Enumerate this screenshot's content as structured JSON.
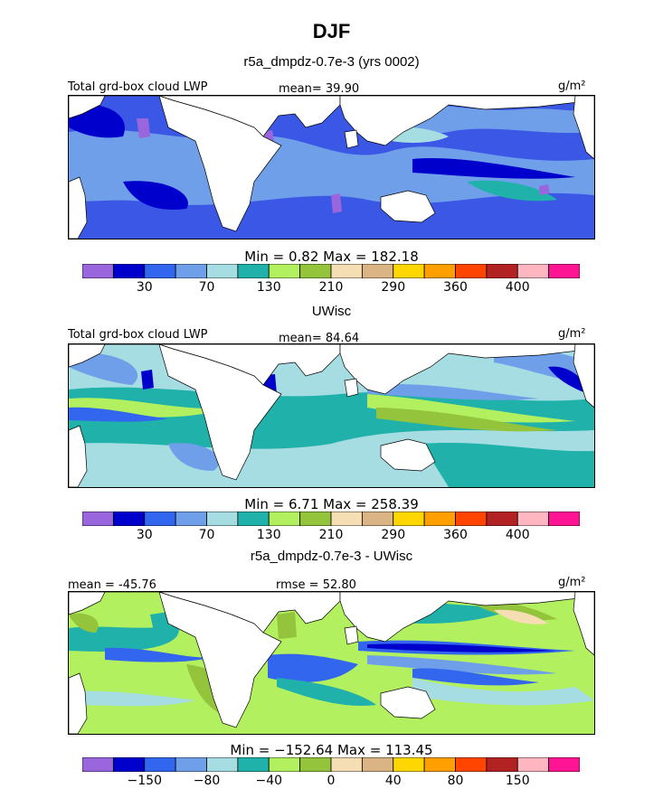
{
  "chart_data": {
    "type": "heatmap",
    "title": "DJF",
    "panels": [
      {
        "name": "r5a_dmpdz-0.7e-3 (yrs 0002)",
        "left_label": "Total grd-box cloud LWP",
        "center_label": "mean=  39.90",
        "unit_label": "g/m²",
        "min": 0.82,
        "max": 182.18,
        "minmax_text": "Min =    0.82  Max =  182.18",
        "colorbar_labels": [
          "30",
          "70",
          "130",
          "210",
          "290",
          "360",
          "400"
        ],
        "colorbar_colors": [
          "#9966dd",
          "#0000cc",
          "#3366ee",
          "#6f9fe8",
          "#a6dde3",
          "#20b2aa",
          "#b2f060",
          "#93c43c",
          "#f5deb3",
          "#dab485",
          "#ffd700",
          "#ff9f00",
          "#ff4500",
          "#b22222",
          "#ffb6c1",
          "#ff1493"
        ]
      },
      {
        "name": "UWisc",
        "left_label": "Total grd-box cloud LWP",
        "center_label": "mean=  84.64",
        "unit_label": "g/m²",
        "min": 6.71,
        "max": 258.39,
        "minmax_text": "Min =    6.71  Max =  258.39",
        "colorbar_labels": [
          "30",
          "70",
          "130",
          "210",
          "290",
          "360",
          "400"
        ],
        "colorbar_colors": [
          "#9966dd",
          "#0000cc",
          "#3366ee",
          "#6f9fe8",
          "#a6dde3",
          "#20b2aa",
          "#b2f060",
          "#93c43c",
          "#f5deb3",
          "#dab485",
          "#ffd700",
          "#ff9f00",
          "#ff4500",
          "#b22222",
          "#ffb6c1",
          "#ff1493"
        ]
      },
      {
        "name": "r5a_dmpdz-0.7e-3 - UWisc",
        "left_label": "mean = -45.76",
        "center_label": "rmse =  52.80",
        "unit_label": "g/m²",
        "min": -152.64,
        "max": 113.45,
        "minmax_text": "Min = −152.64  Max =  113.45",
        "colorbar_labels": [
          "−150",
          "−80",
          "−40",
          "0",
          "40",
          "80",
          "150"
        ],
        "colorbar_colors": [
          "#9966dd",
          "#0000cc",
          "#3366ee",
          "#6f9fe8",
          "#a6dde3",
          "#20b2aa",
          "#b2f060",
          "#93c43c",
          "#f5deb3",
          "#dab485",
          "#ffd700",
          "#ff9f00",
          "#ff4500",
          "#b22222",
          "#ffb6c1",
          "#ff1493"
        ]
      }
    ]
  }
}
